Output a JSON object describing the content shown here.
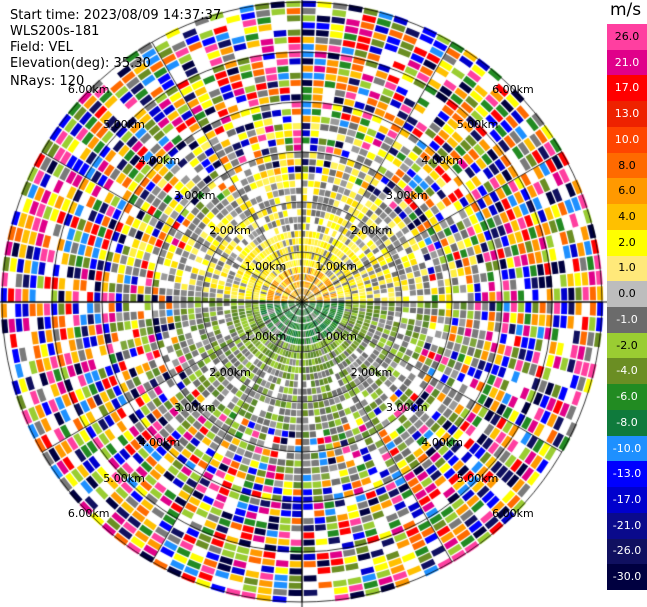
{
  "info": {
    "start_time": "Start time: 2023/08/09 14:37:37",
    "instrument": "WLS200s-181",
    "field": "Field: VEL",
    "elevation": "Elevation(deg): 35.30",
    "nrays": "NRays: 120"
  },
  "chart_data": {
    "type": "heatmap",
    "projection": "polar-ppi",
    "title": "",
    "field": "VEL",
    "elevation_deg": 35.3,
    "n_rays": 120,
    "range_ring_labels_km": [
      "1.00km",
      "2.00km",
      "3.00km",
      "4.00km",
      "5.00km",
      "6.00km"
    ],
    "colorbar": {
      "unit": "m/s",
      "ticks": [
        "26.0",
        "21.0",
        "17.0",
        "13.0",
        "10.0",
        "8.0",
        "6.0",
        "4.0",
        "2.0",
        "1.0",
        "0.0",
        "-1.0",
        "-2.0",
        "-4.0",
        "-6.0",
        "-8.0",
        "-10.0",
        "-13.0",
        "-17.0",
        "-21.0",
        "-26.0",
        "-30.0"
      ],
      "colors": [
        "#ff3fa0",
        "#e0008a",
        "#ff0000",
        "#ee2200",
        "#ff4500",
        "#ff6a00",
        "#ff9900",
        "#ffc000",
        "#ffff00",
        "#ffe97a",
        "#bdbdbd",
        "#6b6b6b",
        "#9acd32",
        "#6b8e23",
        "#228b22",
        "#0f7a3c",
        "#1e90ff",
        "#0000ff",
        "#0000cd",
        "#0a0a8c",
        "#101060",
        "#000040"
      ]
    }
  }
}
